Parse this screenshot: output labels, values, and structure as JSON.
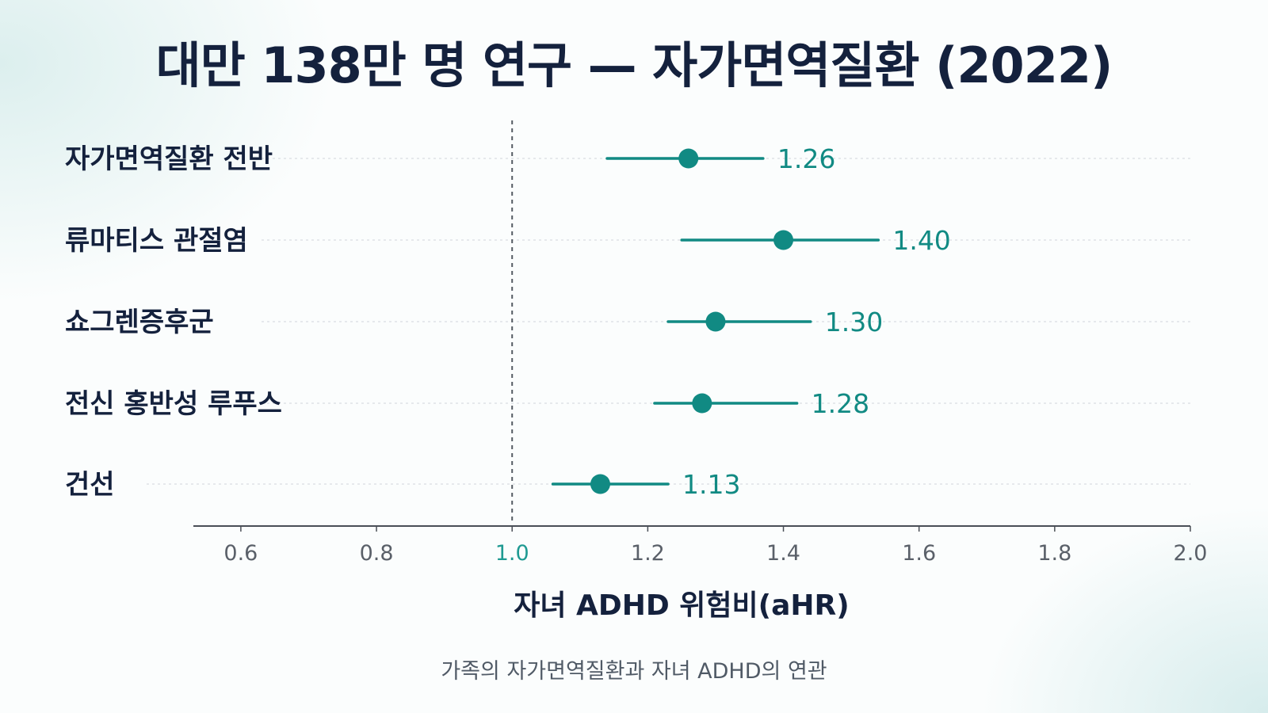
{
  "title": "대만 138만 명 연구 — 자가면역질환 (2022)",
  "caption": "가족의 자가면역질환과 자녀 ADHD의 연관",
  "chart_data": {
    "type": "forest",
    "xlabel": "자녀 ADHD 위험비(aHR)",
    "xlim": [
      0.53,
      2.0
    ],
    "xticks": [
      0.6,
      0.8,
      1.0,
      1.2,
      1.4,
      1.6,
      1.8,
      2.0
    ],
    "xtick_labels": [
      "0.6",
      "0.8",
      "1.0",
      "1.2",
      "1.4",
      "1.6",
      "1.8",
      "2.0"
    ],
    "reference_line": 1.0,
    "colors": {
      "marker": "#118a83",
      "reference_tick": "#1f9a92",
      "axis": "#4a4f57",
      "label": "#14213d"
    },
    "rows": [
      {
        "label": "자가면역질환 전반",
        "estimate": 1.26,
        "estimate_label": "1.26",
        "ci_low": 1.14,
        "ci_high": 1.37
      },
      {
        "label": "류마티스 관절염",
        "estimate": 1.4,
        "estimate_label": "1.40",
        "ci_low": 1.25,
        "ci_high": 1.54
      },
      {
        "label": "쇼그렌증후군",
        "estimate": 1.3,
        "estimate_label": "1.30",
        "ci_low": 1.23,
        "ci_high": 1.44
      },
      {
        "label": "전신 홍반성 루푸스",
        "estimate": 1.28,
        "estimate_label": "1.28",
        "ci_low": 1.21,
        "ci_high": 1.42
      },
      {
        "label": "건선",
        "estimate": 1.13,
        "estimate_label": "1.13",
        "ci_low": 1.06,
        "ci_high": 1.23
      }
    ]
  }
}
